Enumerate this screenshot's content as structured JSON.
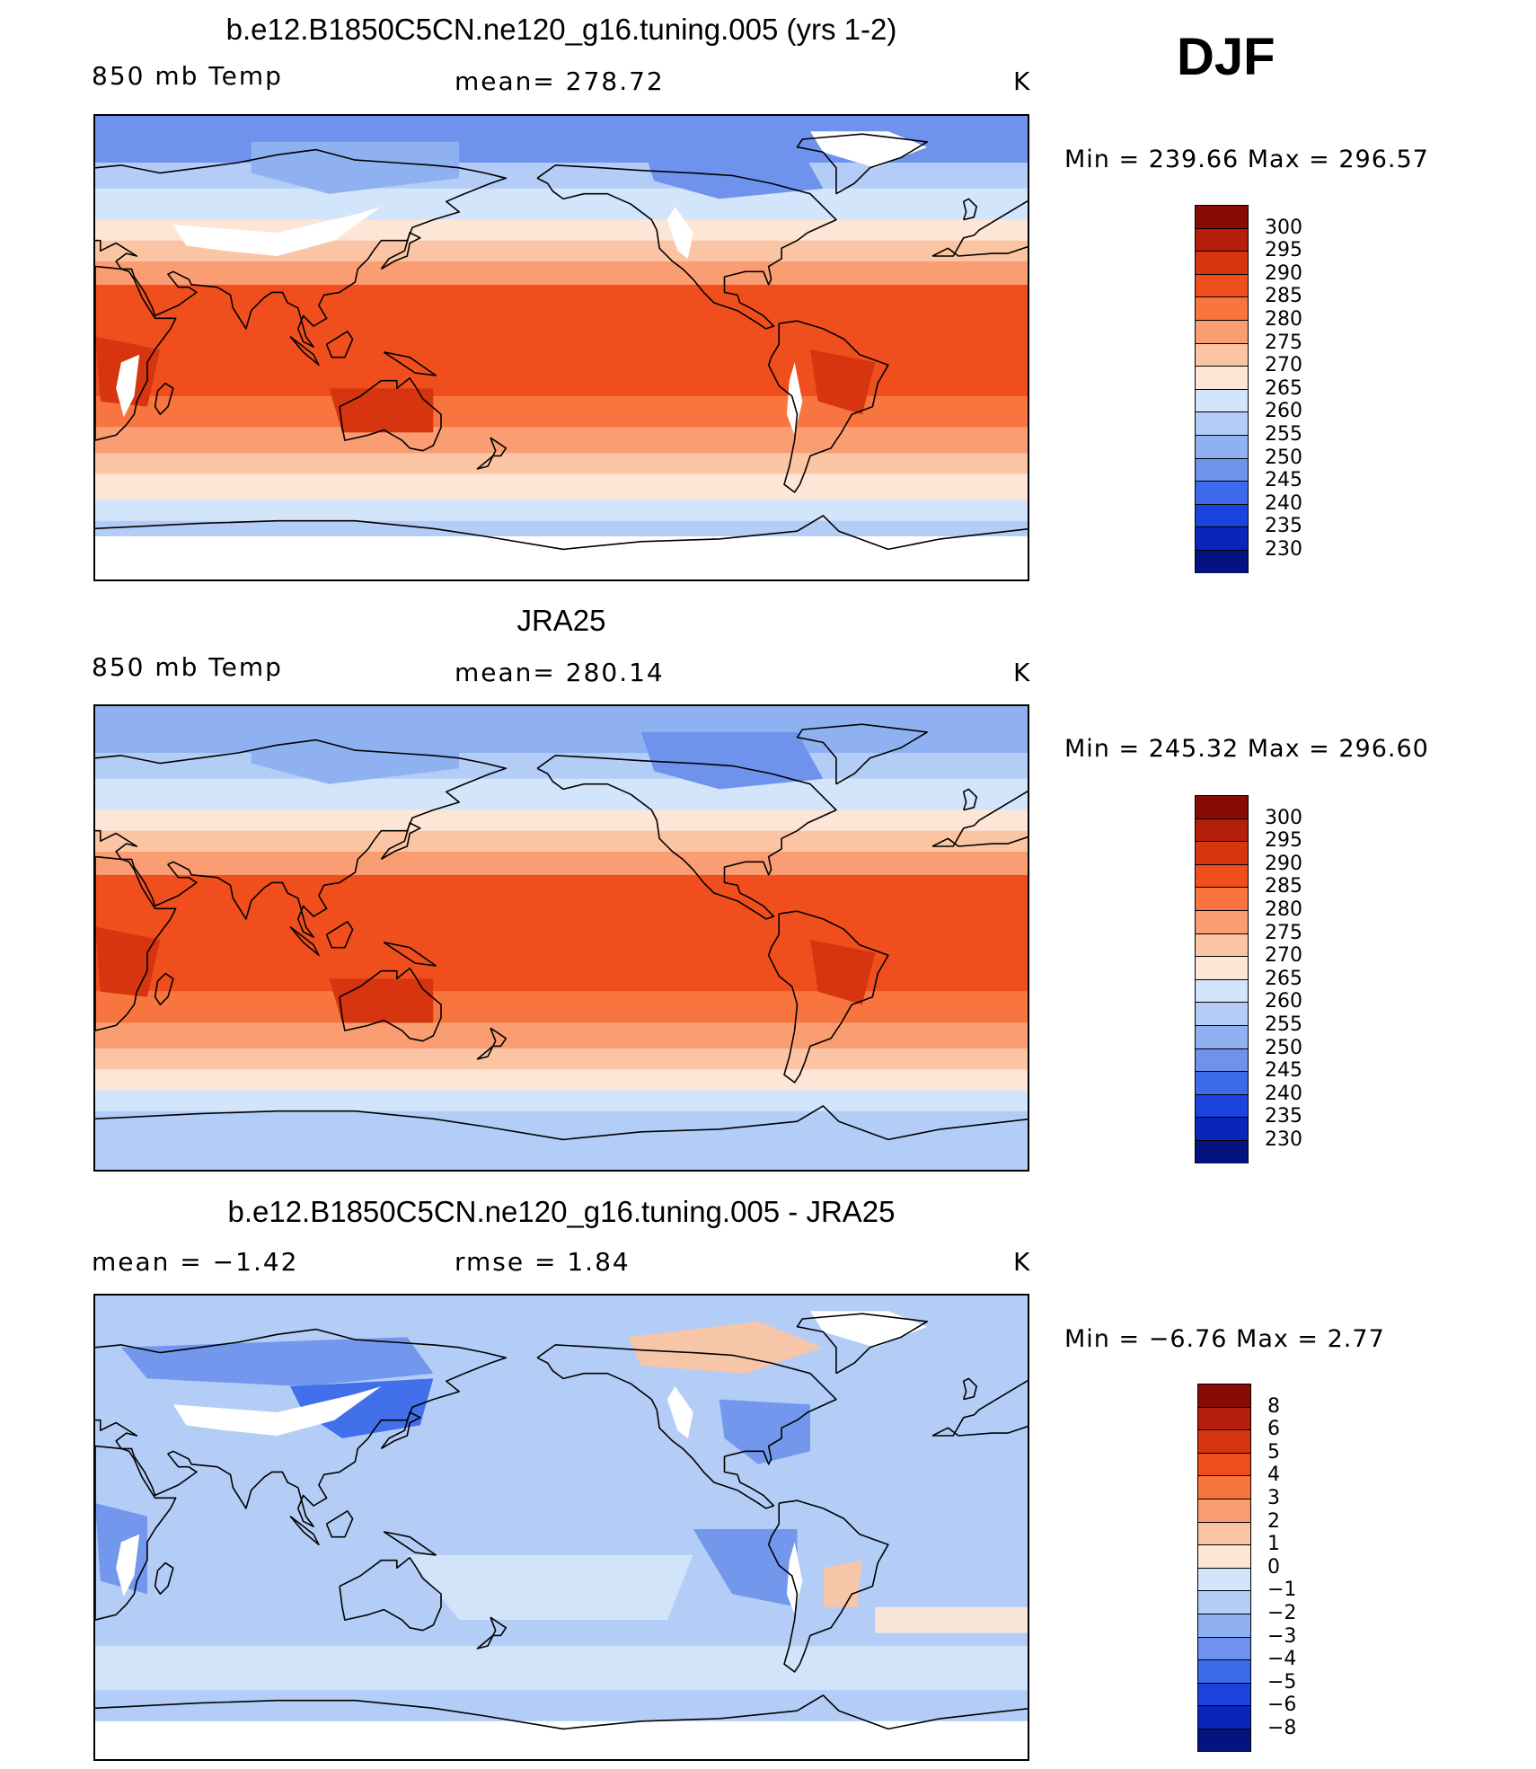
{
  "season": "DJF",
  "panels": [
    {
      "title": "b.e12.B1850C5CN.ne120_g16.tuning.005 (yrs 1-2)",
      "left_label": "850 mb Temp",
      "center_label": "mean=  278.72",
      "units": "K",
      "min_max": "Min  =  239.66  Max  =  296.57",
      "field": "model"
    },
    {
      "title": "JRA25",
      "left_label": "850 mb Temp",
      "center_label": "mean=  280.14",
      "units": "K",
      "min_max": "Min  =  245.32  Max  =  296.60",
      "field": "obs"
    },
    {
      "title": "b.e12.B1850C5CN.ne120_g16.tuning.005 - JRA25",
      "left_label": "mean  =    −1.42",
      "center_label": "rmse  =     1.84",
      "units": "K",
      "min_max": "Min  =    −6.76  Max  =     2.77",
      "field": "diff"
    }
  ],
  "colorbars": {
    "temp": {
      "labels": [
        "300",
        "295",
        "290",
        "285",
        "280",
        "275",
        "270",
        "265",
        "260",
        "255",
        "250",
        "245",
        "240",
        "235",
        "230"
      ],
      "colors": [
        "#8a0a06",
        "#b41e0a",
        "#d73510",
        "#f04f1d",
        "#f8753f",
        "#fb9d73",
        "#fbc5a4",
        "#fde6d6",
        "#d3e5fa",
        "#b3cdf6",
        "#8fb1f2",
        "#6f93ec",
        "#3c6aea",
        "#1b44de",
        "#0a25b9",
        "#05137f"
      ]
    },
    "diff": {
      "labels": [
        "8",
        "6",
        "5",
        "4",
        "3",
        "2",
        "1",
        "0",
        "−1",
        "−2",
        "−3",
        "−4",
        "−5",
        "−6",
        "−8"
      ],
      "colors": [
        "#8a0a06",
        "#b41e0a",
        "#d73510",
        "#f04f1d",
        "#f8753f",
        "#fb9d73",
        "#fbc5a4",
        "#fde6d6",
        "#d3e5fa",
        "#b3cdf6",
        "#8fb1f2",
        "#6f93ec",
        "#3c6aea",
        "#1b44de",
        "#0a25b9",
        "#05137f"
      ]
    }
  }
}
